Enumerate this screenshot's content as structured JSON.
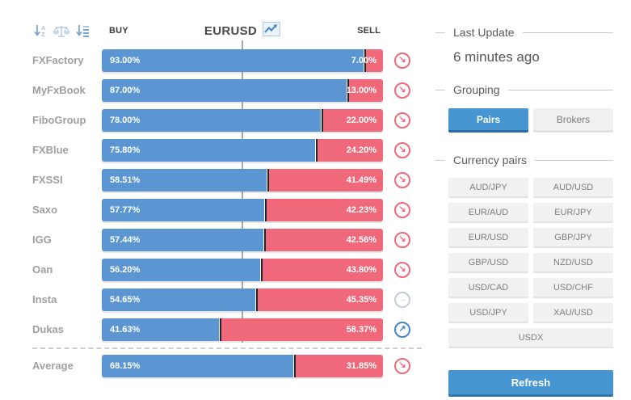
{
  "header": {
    "buy_label": "BUY",
    "symbol": "EURUSD",
    "sell_label": "SELL"
  },
  "chart_data": {
    "type": "bar",
    "orientation": "horizontal-stacked",
    "title": "EURUSD",
    "units": "%",
    "categories": [
      "FXFactory",
      "MyFxBook",
      "FiboGroup",
      "FXBlue",
      "FXSSI",
      "Saxo",
      "IGG",
      "Oan",
      "Insta",
      "Dukas"
    ],
    "series": [
      {
        "name": "BUY",
        "values": [
          93.0,
          87.0,
          78.0,
          75.8,
          58.51,
          57.77,
          57.44,
          56.2,
          54.65,
          41.63
        ]
      },
      {
        "name": "SELL",
        "values": [
          7.0,
          13.0,
          22.0,
          24.2,
          41.49,
          42.23,
          42.56,
          43.8,
          45.35,
          58.37
        ]
      }
    ],
    "average": {
      "BUY": 68.15,
      "SELL": 31.85
    }
  },
  "rows": [
    {
      "name": "FXFactory",
      "buy": 93.0,
      "buy_label": "93.00%",
      "sell": 7.0,
      "sell_label": "7.00%",
      "signal": "down"
    },
    {
      "name": "MyFxBook",
      "buy": 87.0,
      "buy_label": "87.00%",
      "sell": 13.0,
      "sell_label": "13.00%",
      "signal": "down"
    },
    {
      "name": "FiboGroup",
      "buy": 78.0,
      "buy_label": "78.00%",
      "sell": 22.0,
      "sell_label": "22.00%",
      "signal": "down"
    },
    {
      "name": "FXBlue",
      "buy": 75.8,
      "buy_label": "75.80%",
      "sell": 24.2,
      "sell_label": "24.20%",
      "signal": "down"
    },
    {
      "name": "FXSSI",
      "buy": 58.51,
      "buy_label": "58.51%",
      "sell": 41.49,
      "sell_label": "41.49%",
      "signal": "down"
    },
    {
      "name": "Saxo",
      "buy": 57.77,
      "buy_label": "57.77%",
      "sell": 42.23,
      "sell_label": "42.23%",
      "signal": "down"
    },
    {
      "name": "IGG",
      "buy": 57.44,
      "buy_label": "57.44%",
      "sell": 42.56,
      "sell_label": "42.56%",
      "signal": "down"
    },
    {
      "name": "Oan",
      "buy": 56.2,
      "buy_label": "56.20%",
      "sell": 43.8,
      "sell_label": "43.80%",
      "signal": "down"
    },
    {
      "name": "Insta",
      "buy": 54.65,
      "buy_label": "54.65%",
      "sell": 45.35,
      "sell_label": "45.35%",
      "signal": "right"
    },
    {
      "name": "Dukas",
      "buy": 41.63,
      "buy_label": "41.63%",
      "sell": 58.37,
      "sell_label": "58.37%",
      "signal": "up"
    }
  ],
  "average_row": {
    "name": "Average",
    "buy": 68.15,
    "buy_label": "68.15%",
    "sell": 31.85,
    "sell_label": "31.85%",
    "signal": "down"
  },
  "signal_icons": {
    "down": {
      "glyph": "↘",
      "color": "#f0697a",
      "name": "trend-down-icon"
    },
    "right": {
      "glyph": "→",
      "color": "#c3ccd6",
      "name": "trend-right-icon"
    },
    "up": {
      "glyph": "↗",
      "color": "#3e87cb",
      "name": "trend-up-icon"
    }
  },
  "sidebar": {
    "last_update": {
      "title": "Last Update",
      "value": "6 minutes ago"
    },
    "grouping": {
      "title": "Grouping",
      "options": [
        "Pairs",
        "Brokers"
      ],
      "selected": "Pairs"
    },
    "currency_pairs": {
      "title": "Currency pairs",
      "pairs": [
        "AUD/JPY",
        "AUD/USD",
        "EUR/AUD",
        "EUR/JPY",
        "EUR/USD",
        "GBP/JPY",
        "GBP/USD",
        "NZD/USD",
        "USD/CAD",
        "USD/CHF",
        "USD/JPY",
        "XAU/USD"
      ],
      "wide_pair": "USDX"
    },
    "refresh_label": "Refresh"
  },
  "colors": {
    "buy": "#5b96d2",
    "sell": "#f0697a",
    "accent": "#4796d1"
  }
}
